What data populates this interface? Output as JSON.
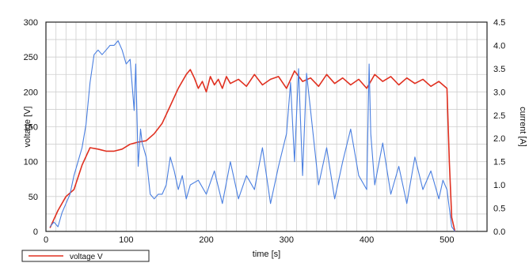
{
  "chart_data": {
    "type": "line",
    "xlabel": "time [s]",
    "ylabel_left": "voltage [V]",
    "ylabel_right": "current [A]",
    "xlim": [
      0,
      550
    ],
    "ylim_left": [
      0,
      300
    ],
    "ylim_right": [
      0,
      4.5
    ],
    "x_ticks": [
      0,
      100,
      200,
      300,
      400,
      500
    ],
    "y_ticks_left": [
      0,
      50,
      100,
      150,
      200,
      250,
      300
    ],
    "y_ticks_right": [
      "0.0",
      "0.5",
      "1.0",
      "1.5",
      "2.0",
      "2.5",
      "3.0",
      "3.5",
      "4.0",
      "4.5"
    ],
    "grid": true,
    "legend": {
      "placement": "bottom-left",
      "entries": [
        "voltage V"
      ]
    },
    "series": [
      {
        "name": "voltage V",
        "axis": "left",
        "color": "#e03020",
        "x": [
          5,
          15,
          25,
          35,
          45,
          55,
          65,
          75,
          85,
          95,
          105,
          115,
          125,
          135,
          145,
          155,
          165,
          175,
          180,
          185,
          190,
          195,
          200,
          205,
          210,
          215,
          220,
          225,
          230,
          240,
          250,
          260,
          270,
          280,
          290,
          300,
          310,
          320,
          330,
          340,
          350,
          360,
          370,
          380,
          390,
          400,
          410,
          420,
          430,
          440,
          450,
          460,
          470,
          480,
          490,
          495,
          500,
          503,
          506,
          510
        ],
        "y": [
          5,
          30,
          50,
          60,
          95,
          120,
          118,
          115,
          115,
          118,
          125,
          128,
          130,
          140,
          155,
          180,
          205,
          225,
          232,
          220,
          205,
          215,
          200,
          222,
          210,
          218,
          205,
          222,
          212,
          218,
          208,
          225,
          210,
          218,
          222,
          205,
          230,
          215,
          220,
          208,
          225,
          212,
          220,
          210,
          218,
          205,
          225,
          215,
          222,
          210,
          220,
          212,
          218,
          208,
          215,
          210,
          205,
          100,
          20,
          0
        ],
        "note": "values estimated from chart"
      },
      {
        "name": "current",
        "axis": "right",
        "color": "#4a7fe0",
        "x": [
          5,
          10,
          15,
          20,
          25,
          30,
          35,
          40,
          45,
          50,
          55,
          60,
          65,
          70,
          75,
          80,
          85,
          90,
          95,
          100,
          105,
          110,
          112,
          115,
          118,
          120,
          125,
          130,
          135,
          140,
          145,
          150,
          155,
          160,
          165,
          170,
          175,
          180,
          190,
          200,
          210,
          220,
          230,
          240,
          250,
          260,
          270,
          280,
          290,
          300,
          305,
          310,
          315,
          320,
          325,
          330,
          340,
          350,
          360,
          370,
          380,
          390,
          400,
          403,
          405,
          410,
          420,
          430,
          440,
          450,
          460,
          470,
          480,
          490,
          495,
          500,
          503,
          506,
          510
        ],
        "y": [
          0.1,
          0.2,
          0.1,
          0.4,
          0.6,
          0.8,
          1.2,
          1.5,
          1.8,
          2.3,
          3.2,
          3.8,
          3.9,
          3.8,
          3.9,
          4.0,
          4.0,
          4.1,
          3.9,
          3.6,
          3.7,
          2.6,
          3.6,
          1.4,
          2.2,
          1.9,
          1.6,
          0.8,
          0.7,
          0.8,
          0.8,
          1.0,
          1.6,
          1.3,
          0.9,
          1.2,
          0.7,
          1.0,
          1.1,
          0.8,
          1.3,
          0.6,
          1.5,
          0.7,
          1.2,
          0.9,
          1.8,
          0.6,
          1.4,
          2.1,
          3.2,
          1.5,
          3.5,
          1.2,
          3.4,
          2.6,
          1.0,
          1.8,
          0.7,
          1.5,
          2.2,
          1.2,
          0.9,
          3.6,
          2.1,
          1.0,
          1.9,
          0.8,
          1.4,
          0.6,
          1.6,
          0.9,
          1.3,
          0.7,
          1.1,
          0.9,
          0.5,
          0.1,
          0
        ],
        "note": "values estimated from chart"
      }
    ]
  }
}
